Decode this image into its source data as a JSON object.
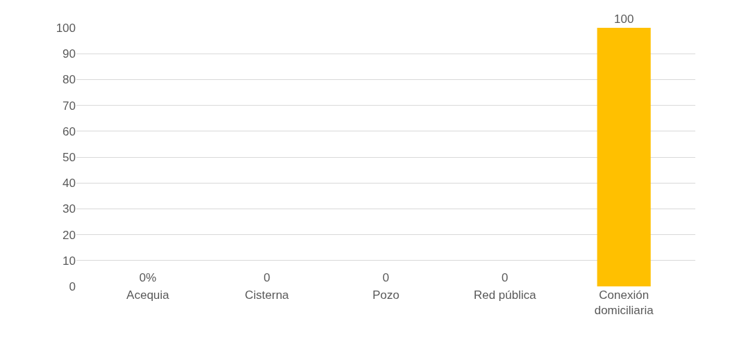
{
  "chart_data": {
    "type": "bar",
    "categories": [
      "Acequia",
      "Cisterna",
      "Pozo",
      "Red pública",
      "Conexión domiciliaria"
    ],
    "values": [
      0,
      0,
      0,
      0,
      100
    ],
    "colors": [
      "#00843d",
      "#0090c0",
      "#c00000",
      "#005a9c",
      "#ffc000"
    ],
    "value_labels": [
      "0%",
      "0",
      "0",
      "0",
      "100"
    ],
    "ylim": [
      0,
      100
    ],
    "yticks": [
      0,
      10,
      20,
      30,
      40,
      50,
      60,
      70,
      80,
      90,
      100
    ],
    "grid": "y"
  }
}
